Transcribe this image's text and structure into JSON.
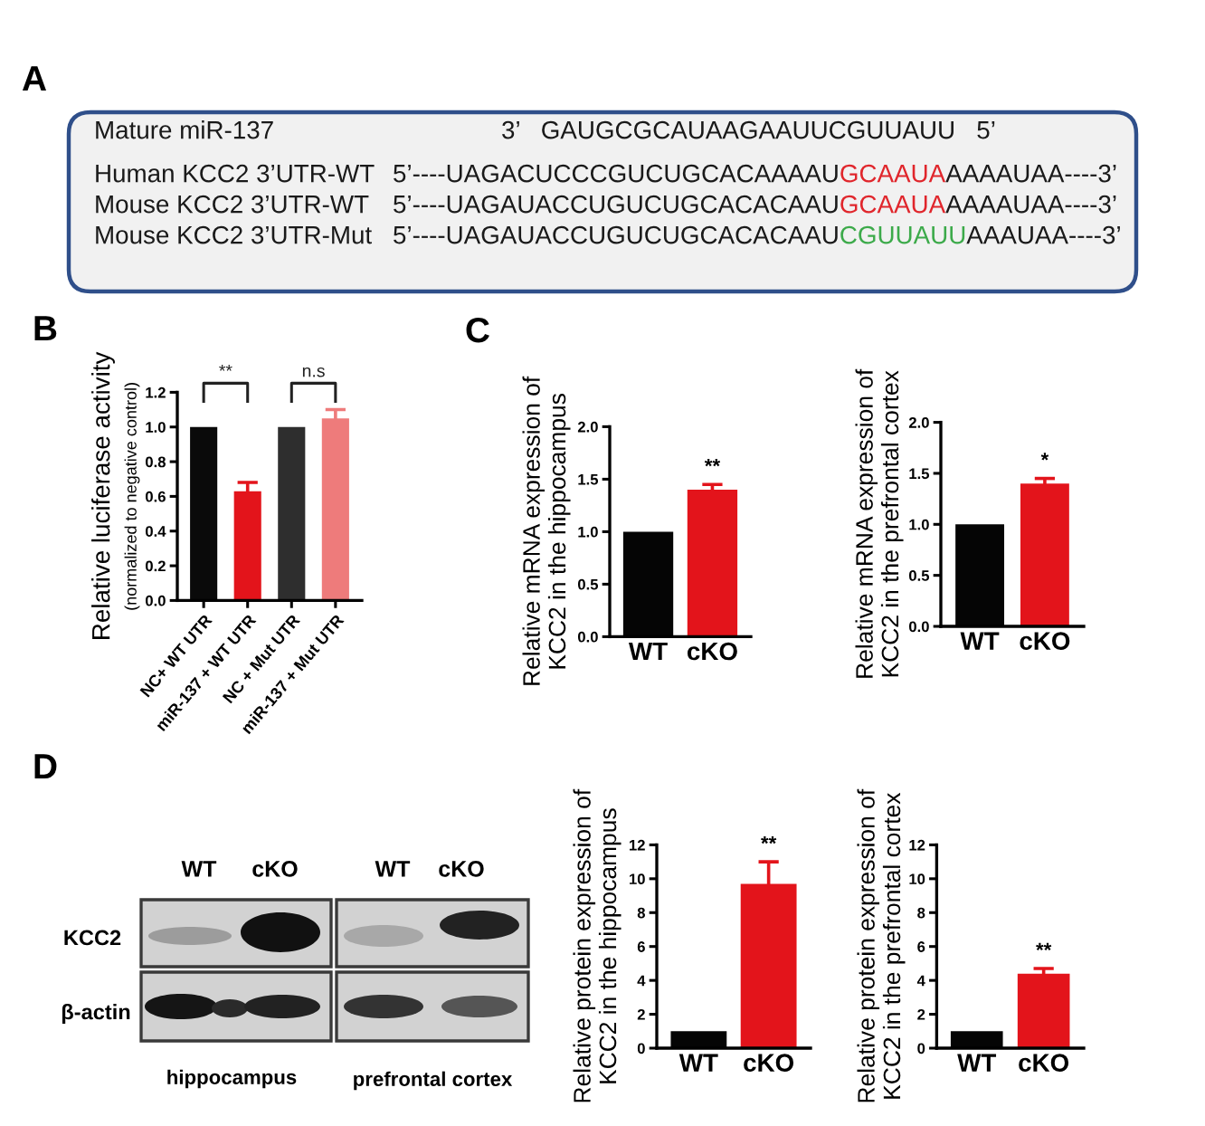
{
  "chart_data": [
    {
      "type": "other",
      "title": "A",
      "annotations": [
        "Mature miR-137",
        "3’   GAUGCGCAUAAGAAUUCGUUAUU   5’",
        "Human KCC2 3’UTR-WT",
        "5’----UAGACUCCCGUCUGCACAAAAU",
        "GCAAUA",
        "AAAAUAA----3’",
        "Mouse KCC2 3’UTR-WT",
        "5’----UAGAUACCUGUCUGCACACAAU",
        "GCAAUA",
        "AAAAUAA----3’",
        "Mouse KCC2 3’UTR-Mut",
        "5’----UAGAUACCUGUCUGCACACAAU",
        "CGUUAUU",
        "AAAUAA----3’"
      ],
      "colors": [
        "#1a1a1a",
        "#1a1a1a",
        "#1a1a1a",
        "#1a1a1a",
        "#e0262c",
        "#1a1a1a",
        "#1a1a1a",
        "#1a1a1a",
        "#e0262c",
        "#1a1a1a",
        "#1a1a1a",
        "#1a1a1a",
        "#3caa4a",
        "#1a1a1a"
      ]
    },
    {
      "type": "bar",
      "title": "B",
      "ylabel": "Relative luciferase activity",
      "categories": [
        "NC+ WT UTR",
        "miR-137 + WT UTR",
        "NC + Mut UTR",
        "miR-137 + Mut UTR"
      ],
      "values": [
        1.0,
        0.63,
        1.0,
        1.05
      ],
      "errors": [
        null,
        0.05,
        null,
        0.05
      ],
      "colors": [
        "#0a0a0a",
        "#e3141b",
        "#2e2e2e",
        "#ee7b7b"
      ],
      "ylim": [
        0,
        1.2
      ],
      "yticks": [
        {
          "value": 0,
          "label": "0.0"
        },
        {
          "value": 0.2,
          "label": "0.2"
        },
        {
          "value": 0.4,
          "label": "0.4"
        },
        {
          "value": 0.6,
          "label": "0.6"
        },
        {
          "value": 0.8,
          "label": "0.8"
        },
        {
          "value": 1.0,
          "label": "1.0"
        },
        {
          "value": 1.2,
          "label": "1.2"
        }
      ],
      "annotations": [
        "(normalized to negative control)",
        "**",
        "n.s"
      ]
    },
    {
      "type": "bar",
      "title": "C",
      "ylabel": "Relative mRNA expression of\nKCC2 in the hippocampus",
      "categories": [
        "WT",
        "cKO"
      ],
      "values": [
        1.0,
        1.4
      ],
      "errors": [
        null,
        0.05
      ],
      "colors": [
        "#050505",
        "#e3141b"
      ],
      "ylim": [
        0,
        2.0
      ],
      "yticks": [
        {
          "value": 0,
          "label": "0.0"
        },
        {
          "value": 0.5,
          "label": "0.5"
        },
        {
          "value": 1.0,
          "label": "1.0"
        },
        {
          "value": 1.5,
          "label": "1.5"
        },
        {
          "value": 2.0,
          "label": "2.0"
        }
      ],
      "annotations": [
        "**"
      ]
    },
    {
      "type": "bar",
      "ylabel": "Relative mRNA expression of\nKCC2 in the prefrontal cortex",
      "categories": [
        "WT",
        "cKO"
      ],
      "values": [
        1.0,
        1.4
      ],
      "errors": [
        null,
        0.05
      ],
      "colors": [
        "#050505",
        "#e3141b"
      ],
      "ylim": [
        0,
        2.0
      ],
      "yticks": [
        {
          "value": 0,
          "label": "0.0"
        },
        {
          "value": 0.5,
          "label": "0.5"
        },
        {
          "value": 1.0,
          "label": "1.0"
        },
        {
          "value": 1.5,
          "label": "1.5"
        },
        {
          "value": 2.0,
          "label": "2.0"
        }
      ],
      "annotations": [
        "*"
      ]
    },
    {
      "type": "other",
      "title": "D",
      "annotations": [
        "WT",
        "cKO",
        "WT",
        "cKO",
        "KCC2",
        "β-actin",
        "hippocampus",
        "prefrontal cortex"
      ]
    },
    {
      "type": "bar",
      "ylabel": "Relative protein expression of\nKCC2 in the hippocampus",
      "categories": [
        "WT",
        "cKO"
      ],
      "values": [
        1.0,
        9.7
      ],
      "errors": [
        null,
        1.3
      ],
      "colors": [
        "#050505",
        "#e3141b"
      ],
      "ylim": [
        0,
        12
      ],
      "yticks": [
        0,
        2,
        4,
        6,
        8,
        10,
        12
      ],
      "annotations": [
        "**"
      ]
    },
    {
      "type": "bar",
      "ylabel": "Relative protein expression of\nKCC2 in the prefrontal cortex",
      "categories": [
        "WT",
        "cKO"
      ],
      "values": [
        1.0,
        4.4
      ],
      "errors": [
        null,
        0.3
      ],
      "colors": [
        "#050505",
        "#e3141b"
      ],
      "ylim": [
        0,
        12
      ],
      "yticks": [
        0,
        2,
        4,
        6,
        8,
        10,
        12
      ],
      "annotations": [
        "**"
      ]
    }
  ]
}
